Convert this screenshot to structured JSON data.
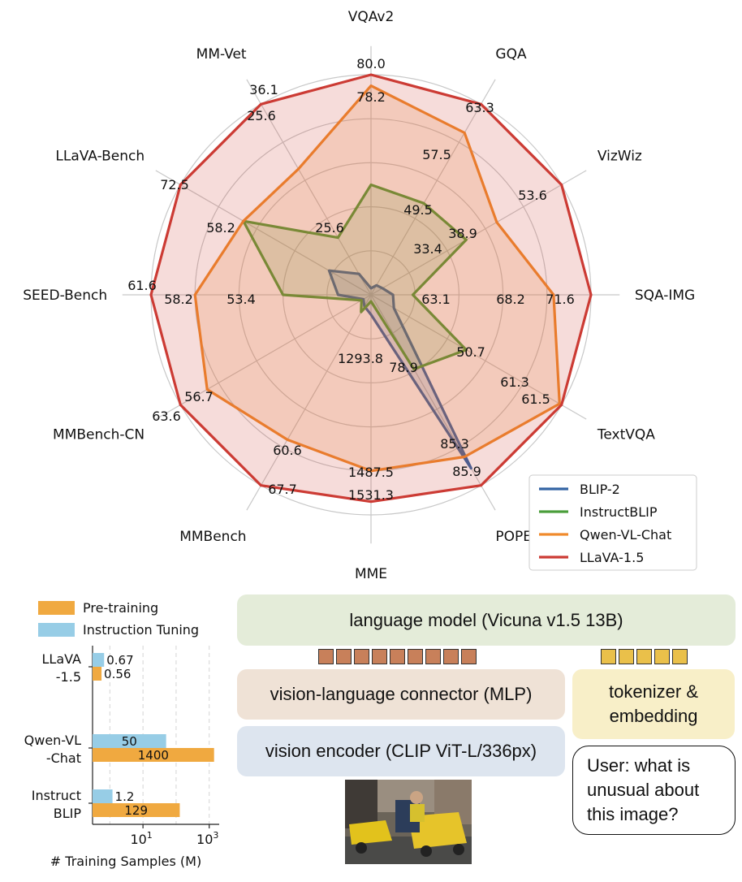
{
  "chart_data": [
    {
      "type": "radar",
      "axes": [
        "VQAv2",
        "GQA",
        "VizWiz",
        "SQA-IMG",
        "TextVQA",
        "POPE",
        "MME",
        "MMBench",
        "MMBench-CN",
        "SEED-Bench",
        "LLaVA-Bench",
        "MM-Vet"
      ],
      "axis_value_labels": [
        [
          "78.2",
          "80.0"
        ],
        [
          "57.5",
          "63.3"
        ],
        [
          "38.9",
          "53.6"
        ],
        [
          "68.2",
          "71.6"
        ],
        [
          "61.3",
          "61.5"
        ],
        [
          "85.3",
          "85.9"
        ],
        [
          "1487.5",
          "1531.3"
        ],
        [
          "60.6",
          "67.7"
        ],
        [
          "56.7",
          "63.6"
        ],
        [
          "58.2",
          "61.6"
        ],
        [
          "58.2",
          "72.5"
        ],
        [
          "25.6",
          "36.1"
        ]
      ],
      "inner_value_labels": [
        "49.5",
        "33.4",
        "63.1",
        "50.7",
        "78.9",
        "1293.8",
        "53.4",
        "25.6"
      ],
      "series": [
        {
          "name": "BLIP-2",
          "color": "#3465a4",
          "r": [
            0.03,
            0.05,
            0.06,
            0.1,
            0.12,
            0.91,
            0.09,
            0.06,
            0.04,
            0.15,
            0.22,
            0.11
          ]
        },
        {
          "name": "InstructBLIP",
          "color": "#4a9e3b",
          "r": [
            0.5,
            0.48,
            0.5,
            0.19,
            0.5,
            0.39,
            0.03,
            0.09,
            0.05,
            0.4,
            0.67,
            0.3
          ]
        },
        {
          "name": "Qwen-VL-Chat",
          "color": "#f08a2c",
          "r": [
            0.95,
            0.85,
            0.66,
            0.83,
            0.99,
            0.85,
            0.8,
            0.76,
            0.86,
            0.8,
            0.67,
            0.66
          ]
        },
        {
          "name": "LLaVA-1.5",
          "color": "#cc3b34",
          "r": [
            1.0,
            1.0,
            1.0,
            1.0,
            1.0,
            1.0,
            0.94,
            1.0,
            1.0,
            1.0,
            1.0,
            1.0
          ]
        }
      ],
      "legend": "bottom-right"
    },
    {
      "type": "bar",
      "orientation": "horizontal",
      "categories": [
        "LLaVA\n-1.5",
        "Qwen-VL\n-Chat",
        "Instruct\nBLIP"
      ],
      "series": [
        {
          "name": "Instruction Tuning",
          "color": "#97cde6",
          "values": [
            0.67,
            50,
            1.2
          ],
          "labels": [
            "0.67",
            "50",
            "1.2"
          ]
        },
        {
          "name": "Pre-training",
          "color": "#f0a940",
          "values": [
            0.56,
            1400,
            129
          ],
          "labels": [
            "0.56",
            "1400",
            "129"
          ]
        }
      ],
      "xlabel": "# Training Samples (M)",
      "xscale": "log",
      "xticks": [
        "10^1",
        "10^3"
      ],
      "xlim": [
        0.3,
        2000
      ],
      "grid": true,
      "legend": "top"
    }
  ],
  "diagram": {
    "language_model": "language model (Vicuna v1.5 13B)",
    "connector": "vision-language connector (MLP)",
    "encoder": "vision encoder (CLIP ViT-L/336px)",
    "tokenizer_line1": "tokenizer &",
    "tokenizer_line2": "embedding",
    "prompt_lines": [
      "User: what is",
      "unusual about",
      "this image?"
    ]
  }
}
